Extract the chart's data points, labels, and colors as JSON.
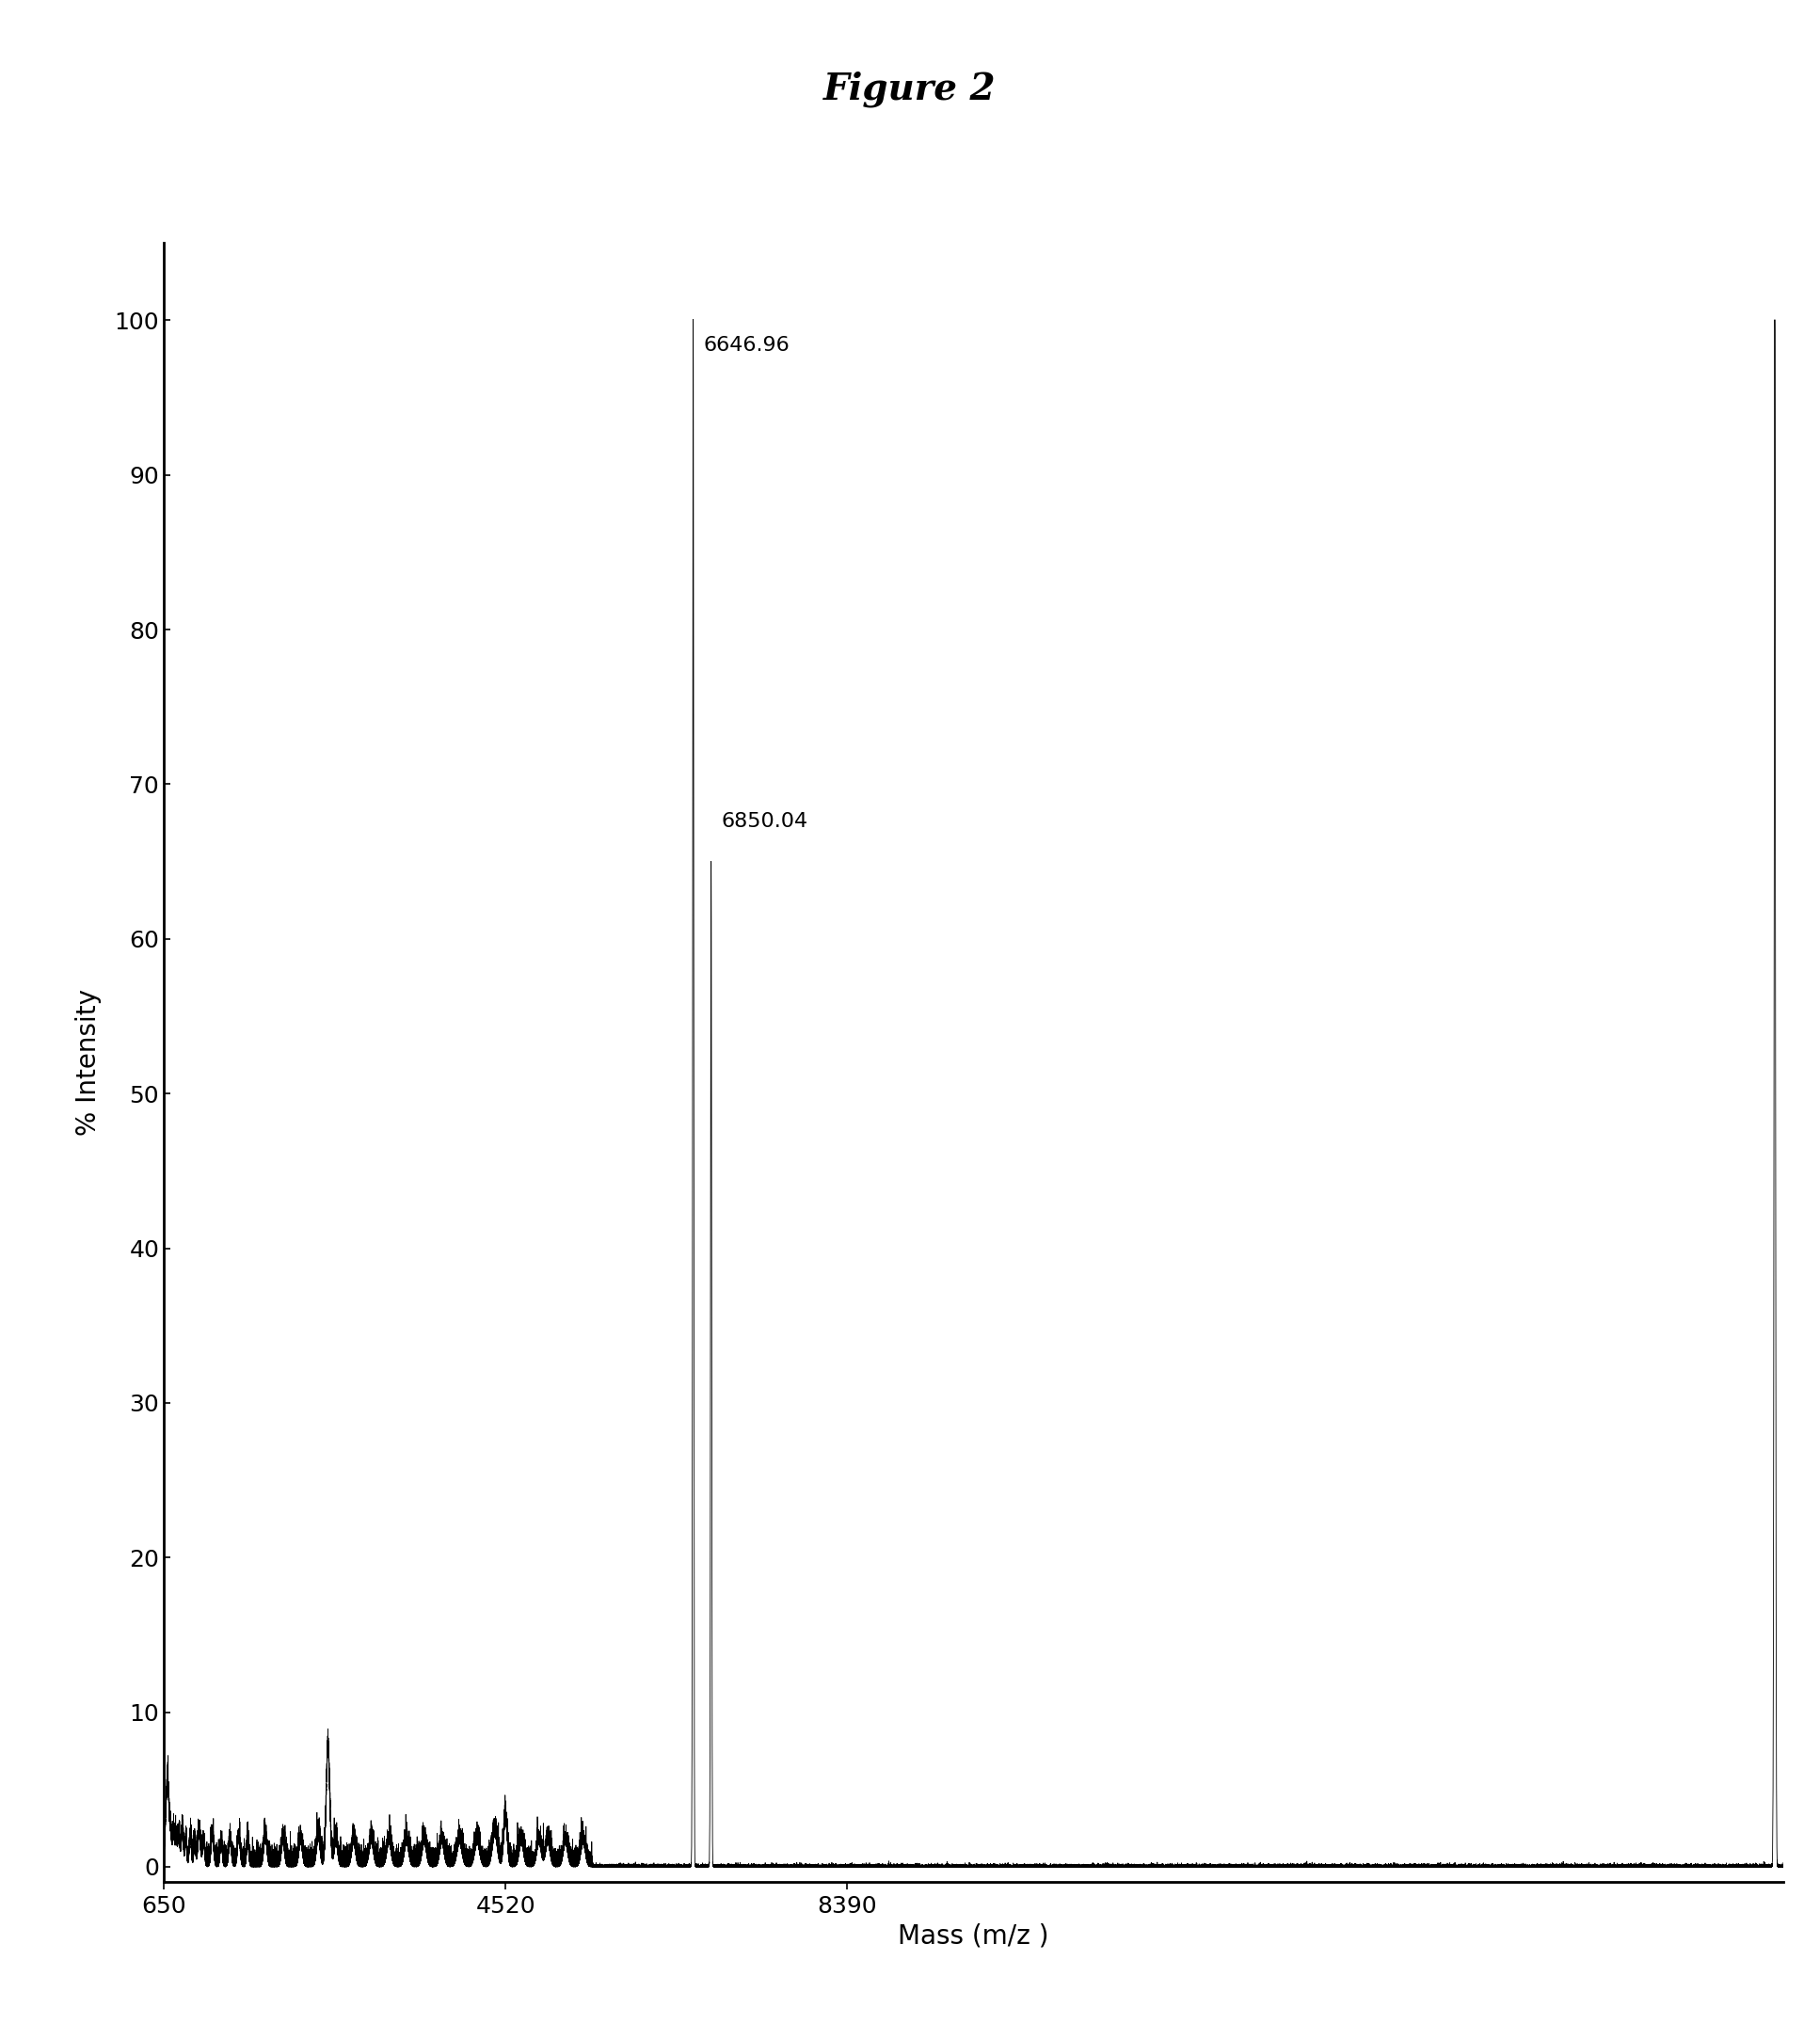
{
  "title": "Figure 2",
  "xlabel": "Mass (m/z )",
  "ylabel": "% Intensity",
  "xlim": [
    650,
    19000
  ],
  "ylim": [
    -1,
    105
  ],
  "xticks": [
    650,
    4520,
    8390
  ],
  "yticks": [
    0,
    10,
    20,
    30,
    40,
    50,
    60,
    70,
    80,
    90,
    100
  ],
  "main_peak_x": 6646.96,
  "main_peak_y": 100.0,
  "second_peak_x": 6850.04,
  "second_peak_y": 65.0,
  "far_right_peak_x": 18900,
  "far_right_peak_y": 100.0,
  "background_color": "#ffffff",
  "line_color": "#000000",
  "title_fontsize": 28,
  "axis_label_fontsize": 20,
  "tick_fontsize": 18,
  "annotation_fontsize": 16
}
